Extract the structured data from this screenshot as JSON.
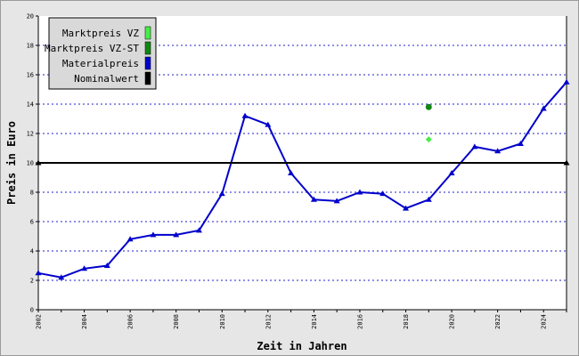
{
  "chart_data": {
    "type": "line",
    "xlabel": "Zeit in Jahren",
    "ylabel": "Preis in Euro",
    "xlim": [
      2002,
      2025
    ],
    "ylim": [
      0,
      20
    ],
    "x_ticks": [
      "2002",
      "2004",
      "2006",
      "2008",
      "2010",
      "2012",
      "2014",
      "2016",
      "2018",
      "2020",
      "2022",
      "2024"
    ],
    "y_ticks": [
      "0",
      "2",
      "4",
      "6",
      "8",
      "10",
      "12",
      "14",
      "16",
      "18",
      "20"
    ],
    "grid": "horizontal dotted",
    "legend_position": "top-left",
    "legend": [
      {
        "name": "Marktpreis VZ",
        "color": "#44ee44"
      },
      {
        "name": "Marktpreis VZ-ST",
        "color": "#118811"
      },
      {
        "name": "Materialpreis",
        "color": "#0000cc"
      },
      {
        "name": "Nominalwert",
        "color": "#000000"
      }
    ],
    "series": [
      {
        "name": "Materialpreis",
        "color": "#0000cc",
        "points": [
          [
            2002,
            2.5
          ],
          [
            2003,
            2.2
          ],
          [
            2004,
            2.8
          ],
          [
            2005,
            3.0
          ],
          [
            2006,
            4.8
          ],
          [
            2007,
            5.1
          ],
          [
            2008,
            5.1
          ],
          [
            2009,
            5.4
          ],
          [
            2010,
            7.9
          ],
          [
            2011,
            13.2
          ],
          [
            2012,
            12.6
          ],
          [
            2013,
            9.3
          ],
          [
            2014,
            7.5
          ],
          [
            2015,
            7.4
          ],
          [
            2016,
            8.0
          ],
          [
            2017,
            7.9
          ],
          [
            2018,
            6.9
          ],
          [
            2019,
            7.5
          ],
          [
            2020,
            9.3
          ],
          [
            2021,
            11.1
          ],
          [
            2022,
            10.8
          ],
          [
            2023,
            11.3
          ],
          [
            2024,
            13.7
          ],
          [
            2025,
            15.5
          ]
        ]
      },
      {
        "name": "Nominalwert",
        "color": "#000000",
        "points": [
          [
            2002,
            10
          ],
          [
            2025,
            10
          ]
        ]
      },
      {
        "name": "Marktpreis VZ",
        "color": "#44ee44",
        "points": [
          [
            2019,
            11.6
          ]
        ]
      },
      {
        "name": "Marktpreis VZ-ST",
        "color": "#118811",
        "points": [
          [
            2019,
            13.8
          ]
        ]
      }
    ]
  }
}
